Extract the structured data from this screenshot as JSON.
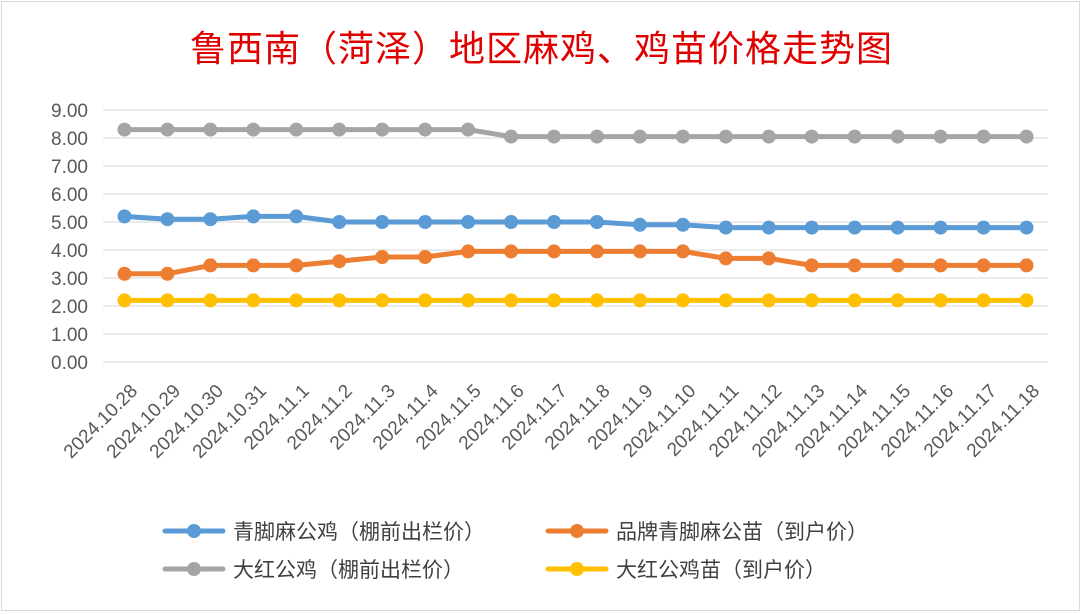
{
  "chart_data": {
    "type": "line",
    "title": "鲁西南（菏泽）地区麻鸡、鸡苗价格走势图",
    "categories": [
      "2024.10.28",
      "2024.10.29",
      "2024.10.30",
      "2024.10.31",
      "2024.11.1",
      "2024.11.2",
      "2024.11.3",
      "2024.11.4",
      "2024.11.5",
      "2024.11.6",
      "2024.11.7",
      "2024.11.8",
      "2024.11.9",
      "2024.11.10",
      "2024.11.11",
      "2024.11.12",
      "2024.11.13",
      "2024.11.14",
      "2024.11.15",
      "2024.11.16",
      "2024.11.17",
      "2024.11.18"
    ],
    "yticks": [
      "0.00",
      "1.00",
      "2.00",
      "3.00",
      "4.00",
      "5.00",
      "6.00",
      "7.00",
      "8.00",
      "9.00"
    ],
    "ylim": [
      0,
      9
    ],
    "grid": true,
    "legend_position": "bottom",
    "series": [
      {
        "name": "青脚麻公鸡（棚前出栏价）",
        "color": "#5b9bd5",
        "values": [
          5.2,
          5.1,
          5.1,
          5.2,
          5.2,
          5.0,
          5.0,
          5.0,
          5.0,
          5.0,
          5.0,
          5.0,
          4.9,
          4.9,
          4.8,
          4.8,
          4.8,
          4.8,
          4.8,
          4.8,
          4.8,
          4.8
        ]
      },
      {
        "name": "品牌青脚麻公苗（到户价）",
        "color": "#ed7d31",
        "values": [
          3.15,
          3.15,
          3.45,
          3.45,
          3.45,
          3.6,
          3.75,
          3.75,
          3.95,
          3.95,
          3.95,
          3.95,
          3.95,
          3.95,
          3.7,
          3.7,
          3.45,
          3.45,
          3.45,
          3.45,
          3.45,
          3.45
        ]
      },
      {
        "name": "大红公鸡（棚前出栏价）",
        "color": "#a5a5a5",
        "values": [
          8.3,
          8.3,
          8.3,
          8.3,
          8.3,
          8.3,
          8.3,
          8.3,
          8.3,
          8.05,
          8.05,
          8.05,
          8.05,
          8.05,
          8.05,
          8.05,
          8.05,
          8.05,
          8.05,
          8.05,
          8.05,
          8.05
        ]
      },
      {
        "name": "大红公鸡苗（到户价）",
        "color": "#ffc000",
        "values": [
          2.2,
          2.2,
          2.2,
          2.2,
          2.2,
          2.2,
          2.2,
          2.2,
          2.2,
          2.2,
          2.2,
          2.2,
          2.2,
          2.2,
          2.2,
          2.2,
          2.2,
          2.2,
          2.2,
          2.2,
          2.2,
          2.2
        ]
      }
    ]
  }
}
